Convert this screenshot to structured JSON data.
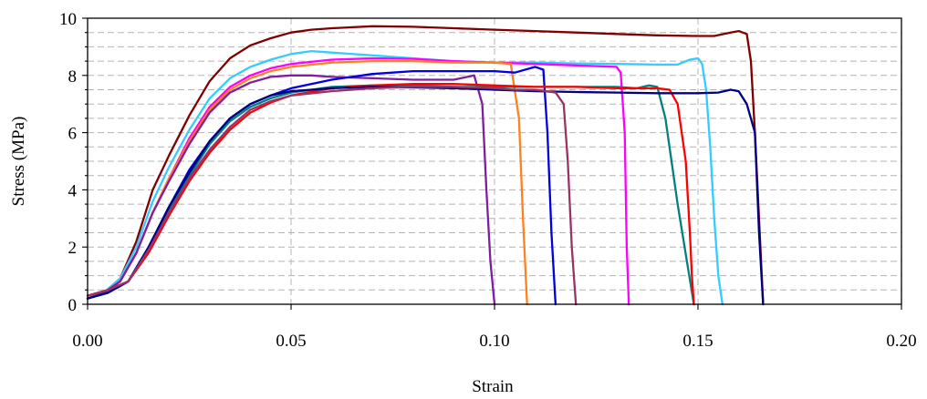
{
  "chart_data": {
    "type": "line",
    "title": "",
    "xlabel": "Strain",
    "ylabel": "Stress (MPa)",
    "xlim": [
      0,
      0.2
    ],
    "ylim": [
      0,
      10
    ],
    "x_ticks": [
      0.0,
      0.05,
      0.1,
      0.15,
      0.2
    ],
    "x_tick_labels": [
      "0.00",
      "0.05",
      "0.10",
      "0.15",
      "0.20"
    ],
    "y_ticks": [
      0,
      2,
      4,
      6,
      8,
      10
    ],
    "y_tick_labels": [
      "0",
      "2",
      "4",
      "6",
      "8",
      "10"
    ],
    "y_minor_step": 0.5,
    "grid": true,
    "legend": "none",
    "series": [
      {
        "color": "#7f0000",
        "x": [
          0.0,
          0.004,
          0.008,
          0.012,
          0.016,
          0.02,
          0.025,
          0.03,
          0.035,
          0.04,
          0.045,
          0.05,
          0.055,
          0.06,
          0.07,
          0.08,
          0.09,
          0.1,
          0.11,
          0.12,
          0.13,
          0.14,
          0.15,
          0.154,
          0.158,
          0.16,
          0.162,
          0.163,
          0.164,
          0.165,
          0.166
        ],
        "y": [
          0.2,
          0.4,
          0.9,
          2.2,
          4.0,
          5.2,
          6.6,
          7.8,
          8.6,
          9.05,
          9.3,
          9.5,
          9.6,
          9.65,
          9.72,
          9.7,
          9.65,
          9.6,
          9.55,
          9.5,
          9.45,
          9.4,
          9.38,
          9.38,
          9.5,
          9.55,
          9.45,
          8.5,
          6.0,
          3.0,
          0.0
        ]
      },
      {
        "color": "#33ccff",
        "x": [
          0.0,
          0.004,
          0.008,
          0.012,
          0.016,
          0.02,
          0.025,
          0.03,
          0.035,
          0.04,
          0.045,
          0.05,
          0.055,
          0.06,
          0.07,
          0.08,
          0.09,
          0.1,
          0.11,
          0.12,
          0.13,
          0.14,
          0.145,
          0.148,
          0.15,
          0.151,
          0.152,
          0.153,
          0.154,
          0.155,
          0.156
        ],
        "y": [
          0.2,
          0.4,
          0.9,
          2.0,
          3.6,
          4.8,
          6.1,
          7.2,
          7.9,
          8.3,
          8.55,
          8.75,
          8.85,
          8.8,
          8.7,
          8.6,
          8.5,
          8.45,
          8.45,
          8.42,
          8.4,
          8.38,
          8.38,
          8.55,
          8.6,
          8.4,
          7.5,
          5.5,
          3.0,
          1.0,
          0.0
        ]
      },
      {
        "color": "#ff00ff",
        "x": [
          0.0,
          0.004,
          0.008,
          0.012,
          0.016,
          0.02,
          0.025,
          0.03,
          0.035,
          0.04,
          0.045,
          0.05,
          0.06,
          0.07,
          0.08,
          0.09,
          0.1,
          0.11,
          0.12,
          0.13,
          0.131,
          0.132,
          0.1325,
          0.133
        ],
        "y": [
          0.2,
          0.4,
          0.8,
          1.8,
          3.2,
          4.4,
          5.8,
          6.9,
          7.6,
          8.0,
          8.25,
          8.4,
          8.55,
          8.6,
          8.58,
          8.5,
          8.45,
          8.4,
          8.35,
          8.3,
          8.1,
          6.0,
          2.0,
          0.0
        ]
      },
      {
        "color": "#ff8020",
        "x": [
          0.0,
          0.004,
          0.008,
          0.012,
          0.016,
          0.02,
          0.025,
          0.03,
          0.035,
          0.04,
          0.045,
          0.05,
          0.06,
          0.07,
          0.08,
          0.09,
          0.1,
          0.104,
          0.106,
          0.107,
          0.108
        ],
        "y": [
          0.2,
          0.4,
          0.8,
          1.8,
          3.2,
          4.4,
          5.7,
          6.8,
          7.5,
          7.9,
          8.15,
          8.3,
          8.45,
          8.5,
          8.5,
          8.45,
          8.45,
          8.4,
          6.5,
          3.0,
          0.0
        ]
      },
      {
        "color": "#7f1f9f",
        "x": [
          0.0,
          0.004,
          0.008,
          0.012,
          0.016,
          0.02,
          0.025,
          0.03,
          0.035,
          0.04,
          0.045,
          0.05,
          0.055,
          0.06,
          0.07,
          0.08,
          0.09,
          0.095,
          0.097,
          0.098,
          0.099,
          0.1
        ],
        "y": [
          0.2,
          0.4,
          0.8,
          1.8,
          3.2,
          4.3,
          5.6,
          6.7,
          7.4,
          7.75,
          7.95,
          8.0,
          8.0,
          7.95,
          7.9,
          7.85,
          7.85,
          8.0,
          7.0,
          4.0,
          1.5,
          0.0
        ]
      },
      {
        "color": "#0000e0",
        "x": [
          0.0,
          0.005,
          0.01,
          0.015,
          0.02,
          0.025,
          0.03,
          0.035,
          0.04,
          0.045,
          0.05,
          0.06,
          0.07,
          0.08,
          0.09,
          0.1,
          0.105,
          0.11,
          0.112,
          0.113,
          0.114,
          0.115
        ],
        "y": [
          0.2,
          0.4,
          0.8,
          2.0,
          3.4,
          4.7,
          5.7,
          6.5,
          7.0,
          7.3,
          7.55,
          7.85,
          8.05,
          8.15,
          8.15,
          8.15,
          8.1,
          8.3,
          8.2,
          6.0,
          2.5,
          0.0
        ]
      },
      {
        "color": "#008080",
        "x": [
          0.0,
          0.005,
          0.01,
          0.015,
          0.02,
          0.025,
          0.03,
          0.035,
          0.04,
          0.045,
          0.05,
          0.06,
          0.07,
          0.08,
          0.09,
          0.1,
          0.11,
          0.12,
          0.13,
          0.135,
          0.138,
          0.14,
          0.142,
          0.145,
          0.149
        ],
        "y": [
          0.2,
          0.4,
          0.8,
          2.0,
          3.3,
          4.5,
          5.6,
          6.4,
          6.9,
          7.2,
          7.4,
          7.6,
          7.65,
          7.65,
          7.6,
          7.6,
          7.6,
          7.6,
          7.6,
          7.55,
          7.65,
          7.6,
          6.5,
          3.5,
          0.0
        ]
      },
      {
        "color": "#ff0000",
        "x": [
          0.0,
          0.005,
          0.01,
          0.015,
          0.02,
          0.025,
          0.03,
          0.035,
          0.04,
          0.045,
          0.05,
          0.06,
          0.07,
          0.08,
          0.09,
          0.1,
          0.11,
          0.12,
          0.13,
          0.14,
          0.143,
          0.145,
          0.147,
          0.148,
          0.1485,
          0.149
        ],
        "y": [
          0.3,
          0.5,
          0.8,
          1.8,
          3.1,
          4.3,
          5.3,
          6.1,
          6.7,
          7.05,
          7.3,
          7.55,
          7.65,
          7.7,
          7.7,
          7.65,
          7.6,
          7.6,
          7.55,
          7.55,
          7.5,
          7.0,
          5.0,
          2.5,
          1.0,
          0.0
        ]
      },
      {
        "color": "#000080",
        "x": [
          0.0,
          0.005,
          0.01,
          0.015,
          0.02,
          0.025,
          0.03,
          0.035,
          0.04,
          0.045,
          0.05,
          0.06,
          0.07,
          0.08,
          0.09,
          0.1,
          0.11,
          0.12,
          0.13,
          0.14,
          0.15,
          0.155,
          0.158,
          0.16,
          0.162,
          0.164,
          0.165,
          0.166
        ],
        "y": [
          0.2,
          0.4,
          0.8,
          2.0,
          3.4,
          4.6,
          5.7,
          6.5,
          7.0,
          7.3,
          7.45,
          7.55,
          7.6,
          7.58,
          7.55,
          7.5,
          7.45,
          7.42,
          7.4,
          7.38,
          7.38,
          7.4,
          7.5,
          7.45,
          7.0,
          6.0,
          2.5,
          0.0
        ]
      },
      {
        "color": "#993366",
        "x": [
          0.0,
          0.005,
          0.01,
          0.015,
          0.02,
          0.025,
          0.03,
          0.035,
          0.04,
          0.045,
          0.05,
          0.06,
          0.07,
          0.08,
          0.09,
          0.1,
          0.105,
          0.11,
          0.115,
          0.117,
          0.118,
          0.119,
          0.12
        ],
        "y": [
          0.3,
          0.5,
          0.8,
          1.9,
          3.2,
          4.4,
          5.4,
          6.2,
          6.8,
          7.1,
          7.3,
          7.45,
          7.55,
          7.6,
          7.6,
          7.55,
          7.5,
          7.5,
          7.4,
          7.0,
          5.0,
          2.0,
          0.0
        ]
      }
    ]
  }
}
